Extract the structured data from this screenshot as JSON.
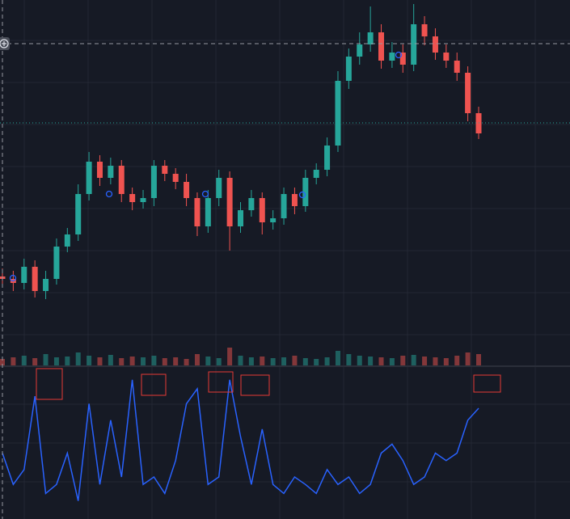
{
  "chart_data": [
    {
      "type": "candlestick",
      "open": [
        118,
        115,
        110,
        130,
        100,
        115,
        155,
        170,
        220,
        260,
        240,
        255,
        220,
        210,
        215,
        255,
        245,
        235,
        215,
        180,
        215,
        240,
        180,
        200,
        215,
        185,
        190,
        220,
        205,
        240,
        250,
        280,
        360,
        390,
        405,
        420,
        385,
        395,
        380,
        430,
        415,
        395,
        385,
        370,
        320
      ],
      "high": [
        128,
        125,
        140,
        138,
        125,
        165,
        178,
        232,
        272,
        268,
        265,
        262,
        228,
        225,
        262,
        262,
        252,
        245,
        222,
        225,
        250,
        248,
        210,
        225,
        222,
        200,
        228,
        228,
        250,
        258,
        290,
        372,
        400,
        420,
        452,
        430,
        408,
        405,
        455,
        440,
        425,
        405,
        395,
        378,
        328
      ],
      "low": [
        105,
        100,
        102,
        92,
        90,
        108,
        148,
        162,
        212,
        230,
        232,
        210,
        200,
        202,
        205,
        236,
        226,
        205,
        168,
        172,
        205,
        150,
        172,
        192,
        170,
        176,
        182,
        195,
        198,
        232,
        242,
        272,
        350,
        380,
        396,
        375,
        376,
        370,
        372,
        404,
        386,
        376,
        360,
        310,
        288
      ],
      "close": [
        115,
        110,
        130,
        100,
        115,
        155,
        170,
        220,
        260,
        240,
        255,
        220,
        210,
        215,
        255,
        245,
        235,
        215,
        180,
        215,
        240,
        180,
        200,
        215,
        185,
        190,
        220,
        205,
        240,
        250,
        280,
        360,
        390,
        405,
        420,
        385,
        395,
        380,
        430,
        415,
        395,
        385,
        370,
        320,
        295
      ],
      "volume": [
        8,
        10,
        12,
        9,
        14,
        10,
        11,
        16,
        12,
        10,
        13,
        9,
        11,
        10,
        12,
        9,
        10,
        8,
        14,
        11,
        9,
        22,
        12,
        10,
        11,
        9,
        10,
        12,
        9,
        8,
        10,
        18,
        14,
        12,
        11,
        10,
        9,
        12,
        13,
        11,
        10,
        9,
        12,
        16,
        14
      ],
      "ylim": [
        0,
        460
      ],
      "volume_lim": [
        0,
        30
      ],
      "up_color": "#26a69a",
      "down_color": "#ef5350"
    },
    {
      "type": "line",
      "values": [
        43,
        22,
        32,
        81,
        16,
        22,
        43,
        11,
        76,
        22,
        65,
        27,
        92,
        22,
        27,
        16,
        38,
        76,
        86,
        22,
        27,
        92,
        54,
        22,
        59,
        22,
        16,
        27,
        22,
        16,
        32,
        22,
        27,
        16,
        22,
        43,
        49,
        38,
        22,
        27,
        43,
        38,
        43,
        65,
        73
      ],
      "color": "#2962ff",
      "ylim": [
        0,
        100
      ]
    }
  ]
}
